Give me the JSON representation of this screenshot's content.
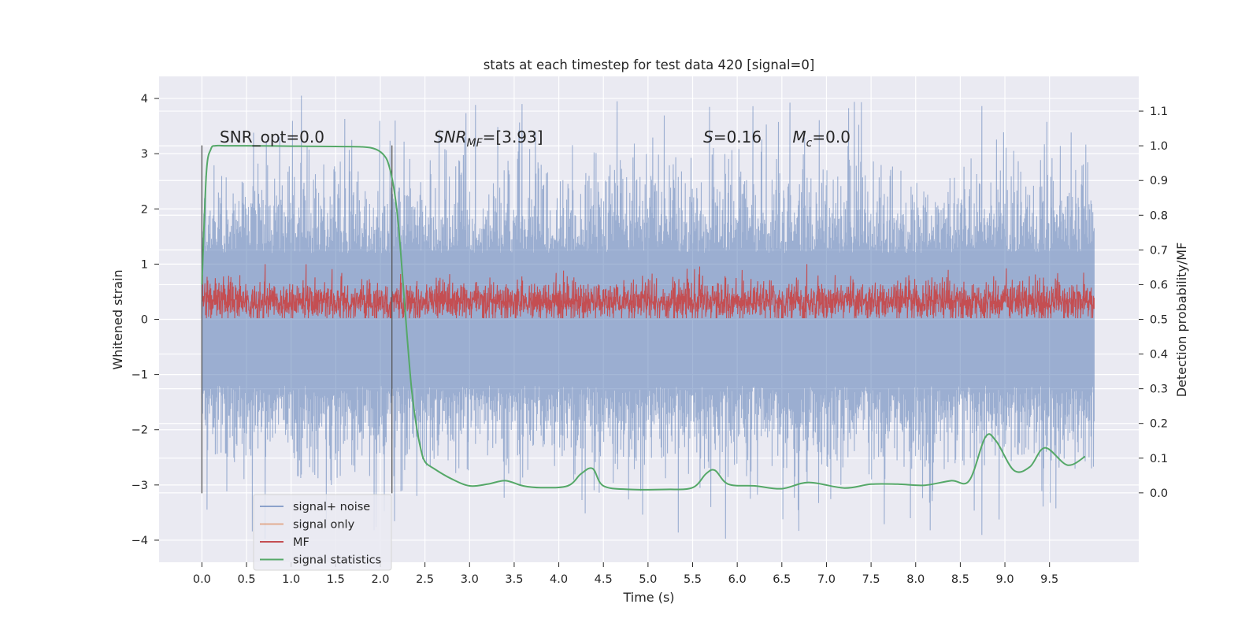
{
  "chart_data": {
    "type": "line",
    "title": "stats at each timestep for test data 420 [signal=0]",
    "xlabel": "Time (s)",
    "ylabel": "Whitened strain",
    "ylabel_right": "Detection probability/MF",
    "xlim": [
      -0.48,
      10.5
    ],
    "ylim": [
      -4.4,
      4.4
    ],
    "ylim_right": [
      -0.2,
      1.2
    ],
    "x_ticks": [
      0.0,
      0.5,
      1.0,
      1.5,
      2.0,
      2.5,
      3.0,
      3.5,
      4.0,
      4.5,
      5.0,
      5.5,
      6.0,
      6.5,
      7.0,
      7.5,
      8.0,
      8.5,
      9.0,
      9.5
    ],
    "x_tick_labels": [
      "0.0",
      "0.5",
      "1.0",
      "1.5",
      "2.0",
      "2.5",
      "3.0",
      "3.5",
      "4.0",
      "4.5",
      "5.0",
      "5.5",
      "6.0",
      "6.5",
      "7.0",
      "7.5",
      "8.0",
      "8.5",
      "9.0",
      "9.5"
    ],
    "y_ticks": [
      4,
      3,
      2,
      1,
      0,
      -1,
      -2,
      -3,
      -4
    ],
    "y_tick_labels": [
      "4",
      "3",
      "2",
      "1",
      "0",
      "−1",
      "−2",
      "−3",
      "−4"
    ],
    "y_right_ticks": [
      1.1,
      1.0,
      0.9,
      0.8,
      0.7,
      0.6,
      0.5,
      0.4,
      0.3,
      0.2,
      0.1,
      0.0
    ],
    "y_right_tick_labels": [
      "1.1",
      "1.0",
      "0.9",
      "0.8",
      "0.7",
      "0.6",
      "0.5",
      "0.4",
      "0.3",
      "0.2",
      "0.1",
      "0.0"
    ],
    "grid": true,
    "legend_position": "lower-left",
    "vlines": [
      {
        "x": 0.0,
        "ymin": -3.15,
        "ymax": 3.15
      },
      {
        "x": 2.13,
        "ymin": -3.15,
        "ymax": 3.15
      }
    ],
    "annotations": [
      {
        "kind": "plain",
        "text": "SNR_opt=0.0",
        "x": 0.2,
        "y": 3.2
      },
      {
        "kind": "snrmf",
        "main": "SNR",
        "sub": "MF",
        "rest": "=[3.93]",
        "x": 2.6,
        "y": 3.2
      },
      {
        "kind": "s",
        "italic": "S",
        "rest": "=0.16",
        "x": 5.62,
        "y": 3.2
      },
      {
        "kind": "mc",
        "italic": "M",
        "sub": "c",
        "rest": "=0.0",
        "x": 6.62,
        "y": 3.2
      }
    ],
    "series": [
      {
        "name": "signal+ noise",
        "color": "#4c72b0",
        "axis": "left",
        "summary": {
          "x_range": [
            0.0,
            10.0
          ],
          "typical_range": [
            -2.0,
            2.0
          ],
          "min": -4.05,
          "max": 4.05
        }
      },
      {
        "name": "signal only",
        "color": "#dd8452",
        "axis": "left",
        "summary": {
          "constant": 0.0,
          "visible": false
        }
      },
      {
        "name": "MF",
        "color": "#c44e52",
        "axis": "left",
        "summary": {
          "x_range": [
            0.0,
            10.0
          ],
          "typical_range": [
            0.1,
            0.6
          ],
          "min": 0.02,
          "max": 1.0
        }
      },
      {
        "name": "signal statistics",
        "color": "#55a868",
        "axis": "right",
        "x": [
          0.0,
          0.05,
          0.1,
          0.15,
          0.25,
          0.5,
          1.0,
          1.5,
          1.8,
          1.95,
          2.05,
          2.1,
          2.15,
          2.2,
          2.25,
          2.3,
          2.35,
          2.4,
          2.45,
          2.5,
          2.6,
          2.8,
          3.0,
          3.2,
          3.4,
          3.6,
          3.8,
          4.1,
          4.25,
          4.38,
          4.5,
          4.8,
          5.2,
          5.5,
          5.65,
          5.75,
          5.9,
          6.2,
          6.5,
          6.8,
          7.2,
          7.5,
          7.8,
          8.1,
          8.4,
          8.6,
          8.78,
          8.9,
          9.1,
          9.28,
          9.45,
          9.7,
          9.9
        ],
        "y": [
          0.6,
          0.92,
          0.99,
          1.0,
          1.0,
          1.0,
          0.999,
          0.998,
          0.997,
          0.99,
          0.97,
          0.94,
          0.88,
          0.78,
          0.62,
          0.45,
          0.3,
          0.2,
          0.13,
          0.09,
          0.07,
          0.04,
          0.02,
          0.025,
          0.035,
          0.02,
          0.015,
          0.02,
          0.055,
          0.07,
          0.02,
          0.01,
          0.01,
          0.015,
          0.055,
          0.065,
          0.025,
          0.02,
          0.012,
          0.03,
          0.014,
          0.025,
          0.025,
          0.022,
          0.035,
          0.035,
          0.16,
          0.15,
          0.065,
          0.075,
          0.13,
          0.08,
          0.105
        ]
      }
    ]
  }
}
